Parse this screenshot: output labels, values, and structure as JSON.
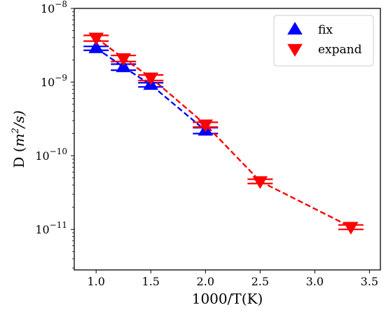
{
  "chart_data": {
    "type": "scatter",
    "xlabel": "1000/T(K)",
    "ylabel_prefix": "D (",
    "ylabel_unit_m": "m",
    "ylabel_unit_exp": "2",
    "ylabel_unit_rest": "/s)",
    "xlim": [
      0.8,
      3.6
    ],
    "ylim_log10": [
      -11.55,
      -8
    ],
    "log_y": true,
    "x_ticks": [
      1.0,
      1.5,
      2.0,
      2.5,
      3.0,
      3.5
    ],
    "x_tick_labels": [
      "1.0",
      "1.5",
      "2.0",
      "2.5",
      "3.0",
      "3.5"
    ],
    "y_ticks": [
      {
        "value": 1e-08,
        "base": "10",
        "exp": "−8"
      },
      {
        "value": 1e-09,
        "base": "10",
        "exp": "−9"
      },
      {
        "value": 1e-10,
        "base": "10",
        "exp": "−10"
      },
      {
        "value": 1e-11,
        "base": "10",
        "exp": "−11"
      }
    ],
    "legend_position": "top-right",
    "series": [
      {
        "name": "fix",
        "color": "#0000ff",
        "marker": "triangle-up",
        "line": "dashed",
        "x": [
          1.0,
          1.25,
          1.5,
          2.0
        ],
        "y": [
          2.9e-09,
          1.6e-09,
          9.2e-10,
          2.2e-10
        ],
        "err_low": [
          2.7e-09,
          1.45e-09,
          8.6e-10,
          2e-10
        ],
        "err_high": [
          3.05e-09,
          1.75e-09,
          9.8e-10,
          2.4e-10
        ]
      },
      {
        "name": "expand",
        "color": "#ff0000",
        "marker": "triangle-down",
        "line": "dashed",
        "x": [
          1.0,
          1.25,
          1.5,
          2.0,
          2.5,
          3.33
        ],
        "y": [
          4e-09,
          2.1e-09,
          1.15e-09,
          2.65e-10,
          4.5e-11,
          1.08e-11
        ],
        "err_low": [
          3.6e-09,
          1.9e-09,
          1.05e-09,
          2.45e-10,
          4.2e-11,
          1e-11
        ],
        "err_high": [
          4.3e-09,
          2.3e-09,
          1.25e-09,
          2.85e-10,
          4.8e-11,
          1.15e-11
        ]
      }
    ]
  }
}
